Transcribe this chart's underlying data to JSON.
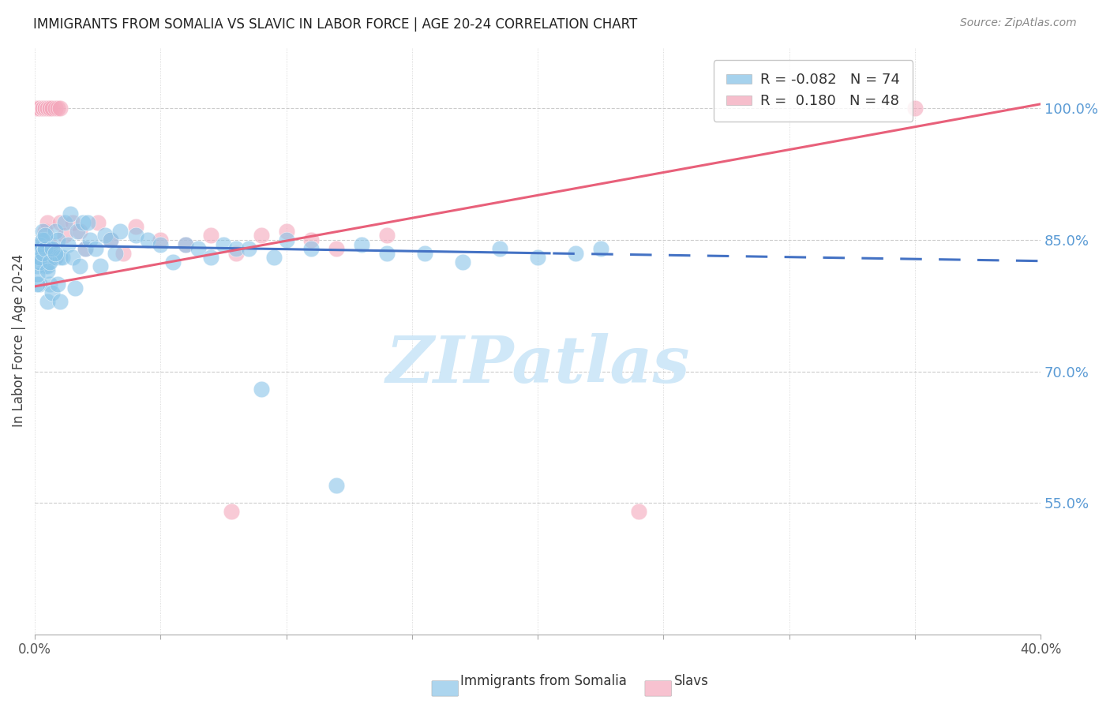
{
  "title": "IMMIGRANTS FROM SOMALIA VS SLAVIC IN LABOR FORCE | AGE 20-24 CORRELATION CHART",
  "source": "Source: ZipAtlas.com",
  "ylabel": "In Labor Force | Age 20-24",
  "xlim": [
    0.0,
    0.4
  ],
  "ylim": [
    0.4,
    1.07
  ],
  "xticks": [
    0.0,
    0.05,
    0.1,
    0.15,
    0.2,
    0.25,
    0.3,
    0.35,
    0.4
  ],
  "xtick_labels": [
    "0.0%",
    "",
    "",
    "",
    "",
    "",
    "",
    "",
    "40.0%"
  ],
  "yticks": [
    0.55,
    0.7,
    0.85,
    1.0
  ],
  "ytick_labels": [
    "55.0%",
    "70.0%",
    "85.0%",
    "100.0%"
  ],
  "somalia_color": "#89c4e8",
  "slavs_color": "#f4a8bc",
  "trend_somalia_color": "#4472c4",
  "trend_slavs_color": "#e8607a",
  "watermark_color": "#d0e8f8",
  "legend_somalia": "R = -0.082   N = 74",
  "legend_slavs": "R =  0.180   N = 48",
  "somalia_R": -0.082,
  "somalia_N": 74,
  "slavs_R": 0.18,
  "slavs_N": 48,
  "somalia_intercept": 0.844,
  "somalia_slope": -0.045,
  "slavs_intercept": 0.797,
  "slavs_slope": 0.52,
  "trend_split_x": 0.205
}
